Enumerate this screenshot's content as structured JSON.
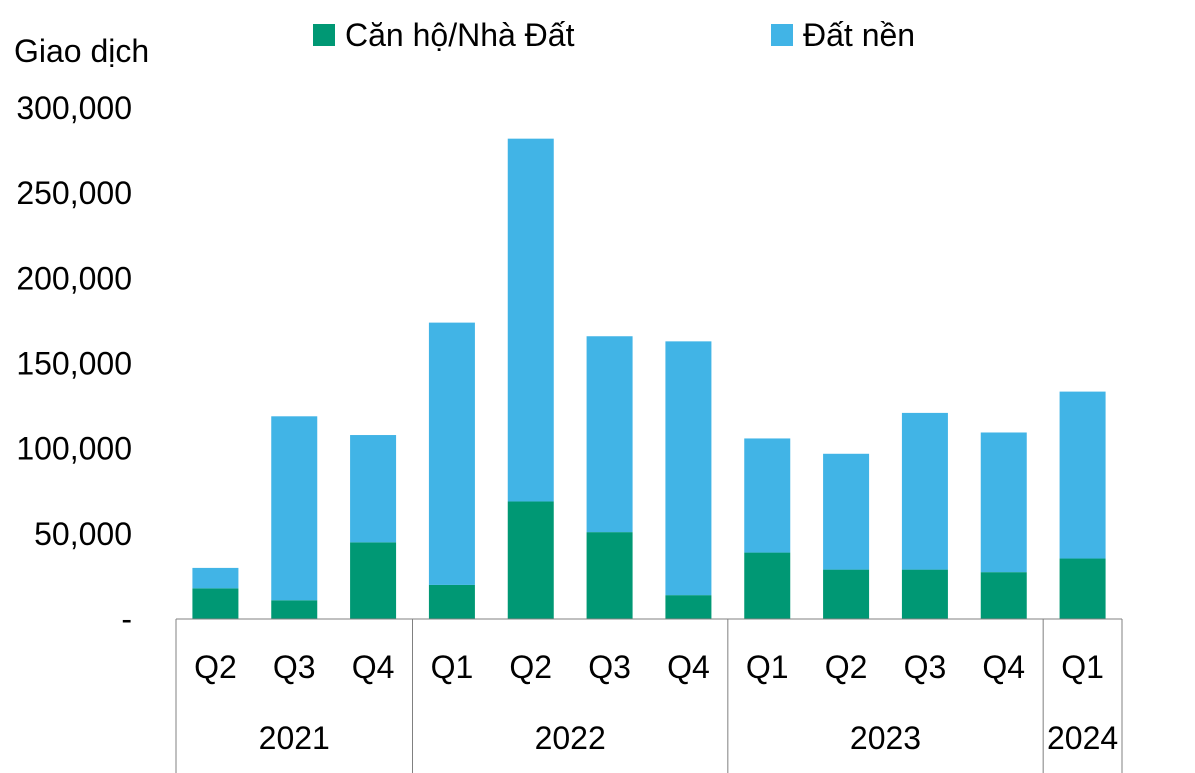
{
  "chart_data": {
    "type": "bar",
    "stacked": true,
    "ylabel": "Giao dịch",
    "ylim": [
      0,
      300000
    ],
    "yticks": [
      {
        "value": 0,
        "label": "-"
      },
      {
        "value": 50000,
        "label": "50,000"
      },
      {
        "value": 100000,
        "label": "100,000"
      },
      {
        "value": 150000,
        "label": "150,000"
      },
      {
        "value": 200000,
        "label": "200,000"
      },
      {
        "value": 250000,
        "label": "250,000"
      },
      {
        "value": 300000,
        "label": "300,000"
      }
    ],
    "categories": [
      "Q2",
      "Q3",
      "Q4",
      "Q1",
      "Q2",
      "Q3",
      "Q4",
      "Q1",
      "Q2",
      "Q3",
      "Q4",
      "Q1"
    ],
    "groups": [
      {
        "label": "2021",
        "count": 3
      },
      {
        "label": "2022",
        "count": 4
      },
      {
        "label": "2023",
        "count": 4
      },
      {
        "label": "2024",
        "count": 1
      }
    ],
    "series": [
      {
        "name": "Căn hộ/Nhà Đất",
        "color": "#009874",
        "values": [
          18000,
          11000,
          45000,
          20000,
          69000,
          51000,
          14000,
          39000,
          29000,
          29000,
          27500,
          35500
        ]
      },
      {
        "name": "Đất nền",
        "color": "#41B4E6",
        "values": [
          12000,
          108000,
          63000,
          154000,
          213000,
          115000,
          149000,
          67000,
          68000,
          92000,
          82000,
          98000
        ]
      }
    ],
    "legend_position": "top"
  }
}
